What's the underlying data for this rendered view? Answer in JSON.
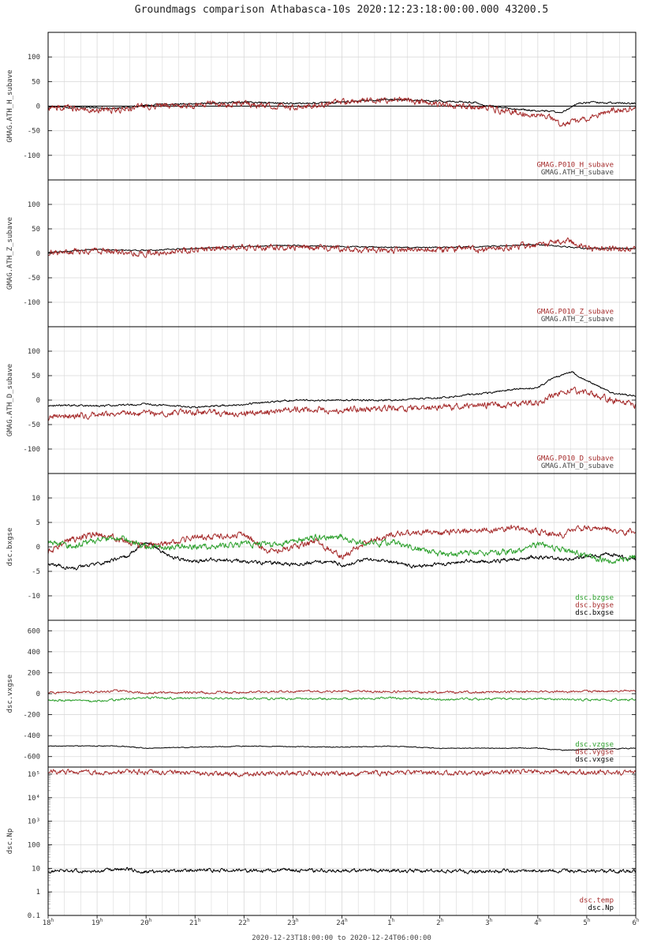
{
  "title": "Groundmags comparison Athabasca-10s 2020:12:23:18:00:00.000 43200.5",
  "footer": "2020-12-23T18:00:00 to 2020-12-24T06:00:00",
  "colors": {
    "red": "#a52a2a",
    "black": "#000000",
    "green": "#2ca02c",
    "grid": "#d9d9d9"
  },
  "chart_data": {
    "type": "line",
    "x_axis": {
      "range_hours": [
        18,
        30
      ],
      "tick_labels": [
        "18",
        "19",
        "20",
        "21",
        "22",
        "23",
        "24",
        "1",
        "2",
        "3",
        "4",
        "5",
        "6"
      ],
      "tick_superscript": "h"
    },
    "panels": [
      {
        "ylabel": "GMAG.ATH_H_subave",
        "ylim": [
          -150,
          150
        ],
        "yticks": [
          100,
          50,
          0,
          -50,
          -100
        ],
        "ytick_labels": [
          "100",
          "50",
          "0",
          "-50",
          "-100"
        ],
        "zero_line": true,
        "legend": [
          "GMAG.P010_H_subave",
          "GMAG.ATH_H_subave"
        ],
        "series": [
          {
            "name": "GMAG.ATH_H_subave",
            "color": "black",
            "noise": 1.5,
            "x": [
              18,
              19,
              19.5,
              20,
              21,
              22,
              23,
              24,
              25,
              26,
              26.7,
              27,
              27.8,
              28.5,
              28.8,
              29.2,
              29.8,
              30
            ],
            "y": [
              -2,
              -3,
              -5,
              3,
              5,
              8,
              5,
              8,
              14,
              10,
              8,
              0,
              -8,
              -12,
              5,
              8,
              6,
              5
            ]
          },
          {
            "name": "GMAG.P010_H_subave",
            "color": "red",
            "noise": 5,
            "x": [
              18,
              19,
              19.5,
              20,
              21,
              22,
              23,
              24,
              25,
              26,
              26.7,
              27,
              27.8,
              28.2,
              28.5,
              29,
              29.5,
              30
            ],
            "y": [
              -3,
              -6,
              -8,
              0,
              2,
              5,
              -3,
              8,
              14,
              4,
              -3,
              -5,
              -15,
              -20,
              -40,
              -25,
              -8,
              -5
            ]
          }
        ]
      },
      {
        "ylabel": "GMAG.ATH_Z_subave",
        "ylim": [
          -150,
          150
        ],
        "yticks": [
          100,
          50,
          0,
          -50,
          -100
        ],
        "ytick_labels": [
          "100",
          "50",
          "0",
          "-50",
          "-100"
        ],
        "zero_line": false,
        "legend": [
          "GMAG.P010_Z_subave",
          "GMAG.ATH_Z_subave"
        ],
        "series": [
          {
            "name": "GMAG.ATH_Z_subave",
            "color": "black",
            "noise": 1,
            "x": [
              18,
              19,
              20,
              21,
              22,
              23,
              24,
              25,
              26,
              27,
              28,
              28.5,
              29,
              30
            ],
            "y": [
              2,
              8,
              6,
              10,
              14,
              16,
              14,
              12,
              12,
              14,
              18,
              14,
              10,
              10
            ]
          },
          {
            "name": "GMAG.P010_Z_subave",
            "color": "red",
            "noise": 5,
            "x": [
              18,
              19,
              19.5,
              20,
              21,
              22,
              23,
              24,
              25,
              26,
              27,
              28,
              28.6,
              29,
              30
            ],
            "y": [
              0,
              5,
              2,
              0,
              8,
              12,
              12,
              10,
              5,
              8,
              8,
              18,
              25,
              10,
              8
            ]
          }
        ]
      },
      {
        "ylabel": "GMAG.ATH_D_subave",
        "ylim": [
          -150,
          150
        ],
        "yticks": [
          100,
          50,
          0,
          -50,
          -100
        ],
        "ytick_labels": [
          "100",
          "50",
          "0",
          "-50",
          "-100"
        ],
        "zero_line": false,
        "legend": [
          "GMAG.P010_D_subave",
          "GMAG.ATH_D_subave"
        ],
        "series": [
          {
            "name": "GMAG.ATH_D_subave",
            "color": "black",
            "noise": 1.5,
            "x": [
              18,
              19,
              20,
              21,
              22,
              23,
              24,
              25,
              26,
              27,
              27.5,
              28,
              28.3,
              28.7,
              29,
              29.5,
              30
            ],
            "y": [
              -10,
              -12,
              -8,
              -15,
              -8,
              0,
              0,
              0,
              5,
              15,
              22,
              25,
              45,
              58,
              40,
              15,
              8
            ]
          },
          {
            "name": "GMAG.P010_D_subave",
            "color": "red",
            "noise": 5,
            "x": [
              18,
              19,
              20,
              21,
              22,
              23,
              24,
              25,
              26,
              27,
              27.5,
              28,
              28.5,
              29,
              29.5,
              30
            ],
            "y": [
              -35,
              -30,
              -28,
              -25,
              -28,
              -20,
              -20,
              -18,
              -15,
              -10,
              -8,
              -5,
              20,
              15,
              0,
              -10
            ]
          }
        ]
      },
      {
        "ylabel": "dsc.bxgse",
        "ylim": [
          -15,
          15
        ],
        "yticks": [
          10,
          5,
          0,
          -5,
          -10
        ],
        "ytick_labels": [
          "10",
          "5",
          "0",
          "-5",
          "-10"
        ],
        "zero_line": false,
        "legend": [
          "dsc.bzgse",
          "dsc.bygse",
          "dsc.bxgse"
        ],
        "legend_colors": [
          "green",
          "red",
          "black"
        ],
        "series": [
          {
            "name": "dsc.bxgse",
            "color": "black",
            "noise": 0.3,
            "x": [
              18,
              18.5,
              19,
              19.6,
              20,
              20.5,
              21,
              21.5,
              22,
              23,
              23.8,
              24,
              24.5,
              25,
              25.5,
              26,
              26.5,
              27,
              27.5,
              28,
              28.5,
              29,
              29.5,
              30
            ],
            "y": [
              -3.5,
              -4.5,
              -3.5,
              -2,
              1,
              -2,
              -3,
              -2.5,
              -3,
              -3.5,
              -3,
              -3.8,
              -2.5,
              -3,
              -4,
              -3.5,
              -3,
              -3,
              -2.5,
              -2,
              -2.5,
              -2,
              -1.5,
              -2.5
            ]
          },
          {
            "name": "dsc.bygse",
            "color": "red",
            "noise": 0.5,
            "x": [
              18,
              18.5,
              19,
              19.5,
              20,
              21,
              22,
              22.5,
              23,
              23.5,
              24,
              24.5,
              25,
              26,
              27,
              27.5,
              28,
              28.5,
              29,
              30
            ],
            "y": [
              -1,
              1.5,
              2.5,
              1.5,
              0,
              2,
              2.5,
              -1,
              0,
              1,
              -2,
              1,
              2.5,
              3,
              3.5,
              4,
              3,
              2.5,
              4,
              3
            ]
          },
          {
            "name": "dsc.bzgse",
            "color": "green",
            "noise": 0.5,
            "x": [
              18,
              18.5,
              19,
              19.5,
              20,
              21,
              22,
              22.5,
              23,
              23.5,
              24,
              24.5,
              25,
              26,
              27,
              27.5,
              28,
              28.5,
              29,
              29.5,
              30
            ],
            "y": [
              1,
              0,
              1.5,
              2,
              0,
              0,
              0.5,
              0.5,
              1,
              2,
              2,
              0.5,
              1,
              -1.5,
              -1,
              -1,
              0.5,
              -0.5,
              -2,
              -3,
              -2
            ]
          }
        ]
      },
      {
        "ylabel": "dsc.vxgse",
        "ylim": [
          -700,
          700
        ],
        "yticks": [
          600,
          400,
          200,
          0,
          -200,
          -400,
          -600
        ],
        "ytick_labels": [
          "600",
          "400",
          "200",
          "0",
          "-200",
          "-400",
          "-600"
        ],
        "zero_line": false,
        "legend": [
          "dsc.vzgse",
          "dsc.vygse",
          "dsc.vxgse"
        ],
        "legend_colors": [
          "green",
          "red",
          "black"
        ],
        "series": [
          {
            "name": "dsc.vxgse",
            "color": "black",
            "noise": 3,
            "x": [
              18,
              19,
              19.5,
              20,
              21,
              22,
              23,
              24,
              25,
              26,
              27,
              28,
              28.5,
              29,
              30
            ],
            "y": [
              -500,
              -498,
              -500,
              -520,
              -510,
              -500,
              -505,
              -510,
              -500,
              -520,
              -520,
              -520,
              -540,
              -530,
              -520
            ]
          },
          {
            "name": "dsc.vygse",
            "color": "red",
            "noise": 8,
            "x": [
              18,
              19,
              19.5,
              20,
              21,
              22,
              23,
              24,
              25,
              26,
              27,
              28,
              29,
              30
            ],
            "y": [
              10,
              15,
              30,
              5,
              10,
              15,
              20,
              25,
              20,
              15,
              15,
              20,
              20,
              25
            ]
          },
          {
            "name": "dsc.vzgse",
            "color": "green",
            "noise": 8,
            "x": [
              18,
              19,
              20,
              21,
              22,
              23,
              24,
              25,
              26,
              27,
              28,
              29,
              30
            ],
            "y": [
              -60,
              -70,
              -40,
              -45,
              -45,
              -50,
              -50,
              -40,
              -55,
              -50,
              -50,
              -60,
              -55
            ]
          }
        ]
      },
      {
        "ylabel": "dsc.Np",
        "ylim": [
          0.1,
          200000
        ],
        "log": true,
        "yticks": [
          100000,
          10000,
          1000,
          100,
          10,
          1,
          0.1
        ],
        "ytick_labels": [
          "10⁵",
          "10⁴",
          "10³",
          "100",
          "10",
          "1",
          "0.1"
        ],
        "zero_line": false,
        "legend": [
          "dsc.temp",
          "dsc.Np"
        ],
        "legend_colors": [
          "red",
          "black"
        ],
        "series": [
          {
            "name": "dsc.Np",
            "color": "black",
            "noise": 0.06,
            "x": [
              18,
              19,
              19.6,
              20,
              21,
              22,
              23,
              24,
              25,
              26,
              27,
              28,
              29,
              30
            ],
            "y": [
              8,
              7.5,
              9.5,
              7,
              8.5,
              8,
              8.5,
              8,
              8,
              7.5,
              7.5,
              8,
              8,
              7.5
            ]
          },
          {
            "name": "dsc.temp",
            "color": "red",
            "noise": 0.08,
            "x": [
              18,
              19,
              20,
              21,
              22,
              23,
              24,
              25,
              26,
              27,
              28,
              29,
              30
            ],
            "y": [
              130000,
              120000,
              125000,
              110000,
              100000,
              110000,
              105000,
              110000,
              115000,
              110000,
              130000,
              120000,
              115000
            ]
          }
        ]
      }
    ]
  }
}
